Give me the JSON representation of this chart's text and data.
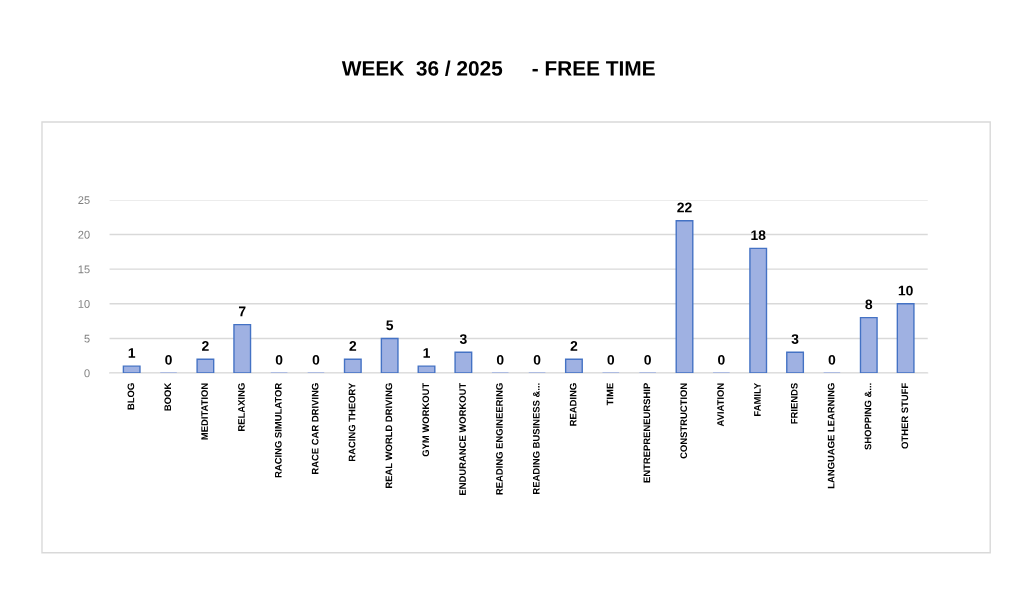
{
  "chart_data": {
    "type": "bar",
    "title": "WEEK  36 / 2025     - FREE TIME",
    "categories": [
      "BLOG",
      "BOOK",
      "MEDITATION",
      "RELAXING",
      "RACING SIMULATOR",
      "RACE CAR DRIVING",
      "RACING THEORY",
      "REAL WORLD DRIVING",
      "GYM WORKOUT",
      "ENDURANCE WORKOUT",
      "READING ENGINEERING",
      "READING BUSINESS &...",
      "READING",
      "TIME",
      "ENTREPRENEURSHIP",
      "CONSTRUCTION",
      "AVIATION",
      "FAMILY",
      "FRIENDS",
      "LANGUAGE LEARNING",
      "SHOPPING &...",
      "OTHER STUFF"
    ],
    "values": [
      1,
      0,
      2,
      7,
      0,
      0,
      2,
      5,
      1,
      3,
      0,
      0,
      2,
      0,
      0,
      22,
      0,
      18,
      3,
      0,
      8,
      10
    ],
    "color": "#9fb1e2",
    "ylim": [
      0,
      25
    ],
    "yticks": [
      0,
      5,
      10,
      15,
      20,
      25
    ],
    "grid": "y",
    "data_labels": true
  }
}
